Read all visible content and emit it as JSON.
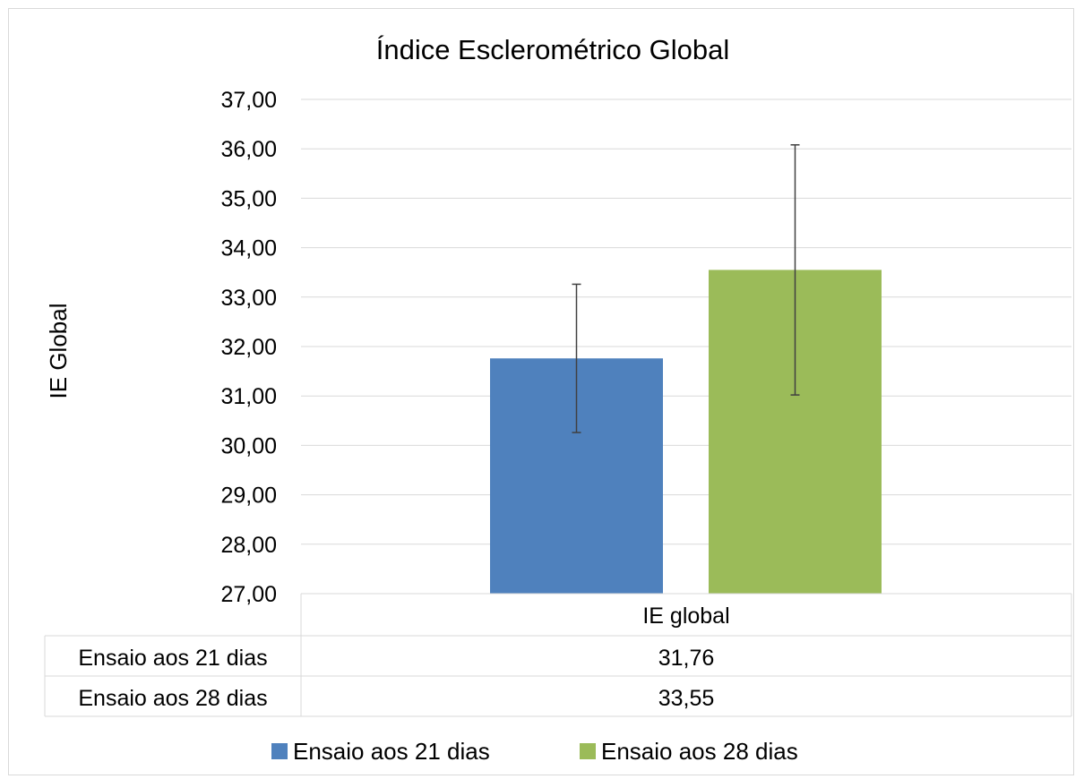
{
  "chart_data": {
    "type": "bar",
    "title": "Índice Esclerométrico Global",
    "xlabel": "",
    "ylabel": "IE Global",
    "categories": [
      "IE global"
    ],
    "ylim": [
      27,
      37
    ],
    "yticks": [
      "27,00",
      "28,00",
      "29,00",
      "30,00",
      "31,00",
      "32,00",
      "33,00",
      "34,00",
      "35,00",
      "36,00",
      "37,00"
    ],
    "grid": true,
    "legend": "bottom",
    "series": [
      {
        "name": "Ensaio aos 21 dias",
        "values": [
          31.76
        ],
        "error_low": [
          30.26
        ],
        "error_high": [
          33.26
        ],
        "color": "#4f81bd",
        "table_value": "31,76"
      },
      {
        "name": "Ensaio aos 28 dias",
        "values": [
          33.55
        ],
        "error_low": [
          31.02
        ],
        "error_high": [
          36.08
        ],
        "color": "#9bbb59",
        "table_value": "33,55"
      }
    ]
  }
}
